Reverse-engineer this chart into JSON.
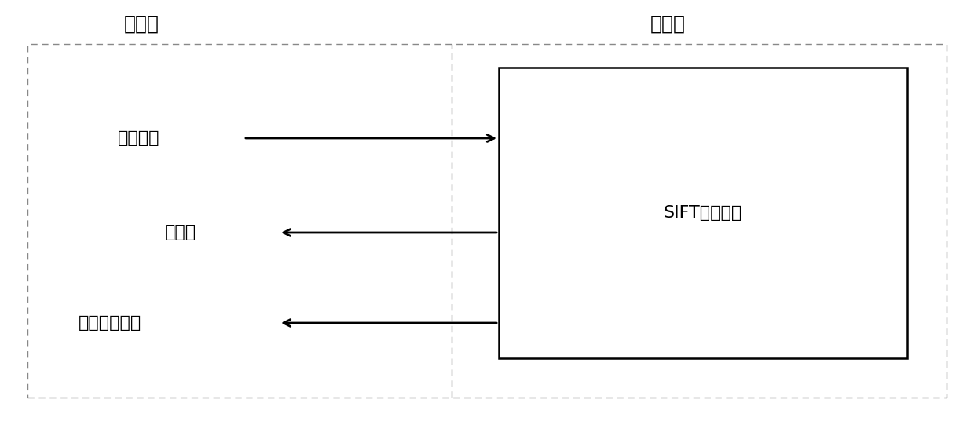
{
  "title_host": "主机端",
  "title_device": "设备端",
  "label_image": "原始图像",
  "label_keypoint": "关键点",
  "label_descriptor": "关键点描述子",
  "label_sift": "SIFT特征提取",
  "bg_color": "#ffffff",
  "box_color": "#000000",
  "arrow_color": "#000000",
  "dashed_line_color": "#888888",
  "title_fontsize": 18,
  "label_fontsize": 16,
  "sift_fontsize": 16,
  "figsize": [
    12.4,
    5.41
  ],
  "dpi": 100,
  "xlim": [
    0,
    12.4
  ],
  "ylim": [
    0,
    5.41
  ]
}
